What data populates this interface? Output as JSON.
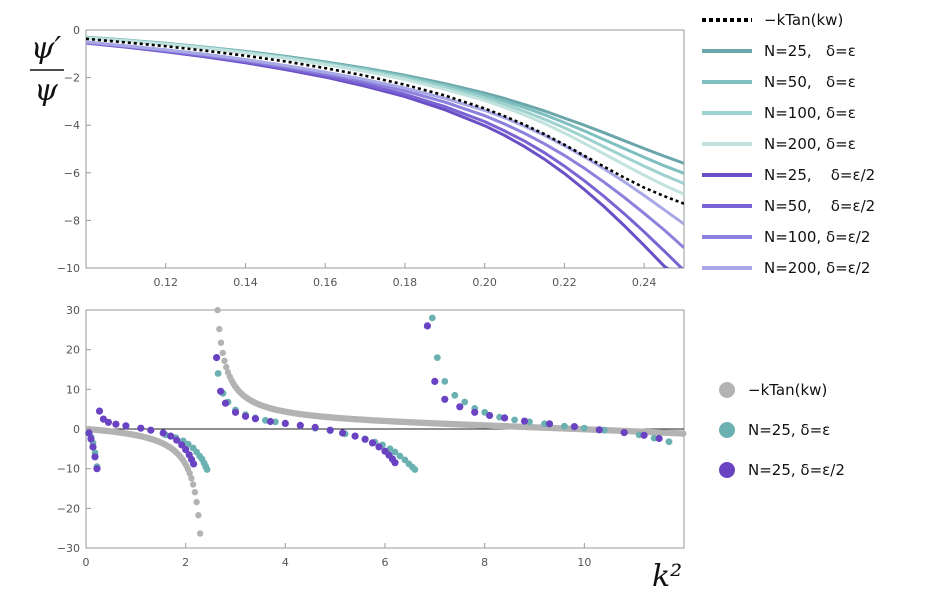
{
  "chart_data": [
    {
      "type": "line",
      "xlim": [
        0.1,
        0.25
      ],
      "ylim": [
        -10,
        0
      ],
      "x_ticks": [
        0.12,
        0.14,
        0.16,
        0.18,
        0.2,
        0.22,
        0.24
      ],
      "y_ticks": [
        0,
        -2,
        -4,
        -6,
        -8,
        -10
      ],
      "x_tick_labels": [
        "0.12",
        "0.14",
        "0.16",
        "0.18",
        "0.20",
        "0.22",
        "0.24"
      ],
      "y_tick_labels": [
        "0",
        "−2",
        "−4",
        "−6",
        "−8",
        "−10"
      ],
      "ylabel_numerator": "ψ′",
      "ylabel_denominator": "ψ",
      "legend_position": "right",
      "grid": false,
      "x": [
        0.1,
        0.11,
        0.12,
        0.13,
        0.14,
        0.15,
        0.16,
        0.17,
        0.18,
        0.19,
        0.2,
        0.205,
        0.21,
        0.215,
        0.22,
        0.225,
        0.23,
        0.235,
        0.24,
        0.245,
        0.25
      ],
      "series": [
        {
          "name": "−kTan(kw)",
          "color": "#000000",
          "dashed": true,
          "values": [
            -0.37,
            -0.52,
            -0.68,
            -0.87,
            -1.08,
            -1.32,
            -1.6,
            -1.92,
            -2.3,
            -2.75,
            -3.3,
            -3.62,
            -3.98,
            -4.38,
            -4.82,
            -5.28,
            -5.75,
            -6.2,
            -6.62,
            -6.98,
            -7.3
          ]
        },
        {
          "name": "N=25,   δ=ε",
          "color": "#6aa6aa",
          "values": [
            -0.3,
            -0.42,
            -0.56,
            -0.72,
            -0.9,
            -1.1,
            -1.34,
            -1.6,
            -1.9,
            -2.25,
            -2.65,
            -2.88,
            -3.13,
            -3.4,
            -3.7,
            -4.0,
            -4.32,
            -4.65,
            -4.98,
            -5.3,
            -5.6
          ]
        },
        {
          "name": "N=50,   δ=ε",
          "color": "#7fbfbf",
          "values": [
            -0.31,
            -0.43,
            -0.57,
            -0.73,
            -0.92,
            -1.13,
            -1.37,
            -1.64,
            -1.95,
            -2.32,
            -2.74,
            -2.99,
            -3.26,
            -3.56,
            -3.89,
            -4.24,
            -4.61,
            -4.98,
            -5.35,
            -5.7,
            -6.02
          ]
        },
        {
          "name": "N=100, δ=ε",
          "color": "#9ed2ce",
          "values": [
            -0.32,
            -0.44,
            -0.58,
            -0.75,
            -0.94,
            -1.16,
            -1.41,
            -1.69,
            -2.01,
            -2.4,
            -2.85,
            -3.12,
            -3.42,
            -3.75,
            -4.11,
            -4.5,
            -4.91,
            -5.32,
            -5.72,
            -6.1,
            -6.45
          ]
        },
        {
          "name": "N=200, δ=ε",
          "color": "#c2e3dd",
          "values": [
            -0.33,
            -0.45,
            -0.6,
            -0.77,
            -0.96,
            -1.19,
            -1.45,
            -1.74,
            -2.08,
            -2.49,
            -2.96,
            -3.25,
            -3.57,
            -3.93,
            -4.33,
            -4.76,
            -5.21,
            -5.66,
            -6.1,
            -6.52,
            -6.9
          ]
        },
        {
          "name": "N=25,    δ=ε/2",
          "color": "#6a4fc6",
          "values": [
            -0.55,
            -0.72,
            -0.91,
            -1.13,
            -1.38,
            -1.66,
            -1.98,
            -2.36,
            -2.8,
            -3.35,
            -4.02,
            -4.43,
            -4.9,
            -5.43,
            -6.03,
            -6.7,
            -7.43,
            -8.22,
            -9.05,
            -9.92,
            -10.5
          ]
        },
        {
          "name": "N=50,    δ=ε/2",
          "color": "#7a63d2",
          "values": [
            -0.54,
            -0.7,
            -0.89,
            -1.1,
            -1.34,
            -1.61,
            -1.92,
            -2.28,
            -2.7,
            -3.22,
            -3.85,
            -4.24,
            -4.67,
            -5.16,
            -5.72,
            -6.33,
            -7.0,
            -7.72,
            -8.48,
            -9.28,
            -10.1
          ]
        },
        {
          "name": "N=100, δ=ε/2",
          "color": "#8c81dc",
          "values": [
            -0.52,
            -0.68,
            -0.86,
            -1.06,
            -1.29,
            -1.55,
            -1.84,
            -2.17,
            -2.56,
            -3.03,
            -3.6,
            -3.95,
            -4.34,
            -4.78,
            -5.27,
            -5.81,
            -6.4,
            -7.03,
            -7.7,
            -8.4,
            -9.15
          ]
        },
        {
          "name": "N=200, δ=ε/2",
          "color": "#a9a8e6",
          "values": [
            -0.5,
            -0.66,
            -0.83,
            -1.02,
            -1.24,
            -1.49,
            -1.77,
            -2.08,
            -2.44,
            -2.87,
            -3.38,
            -3.69,
            -4.04,
            -4.43,
            -4.86,
            -5.33,
            -5.84,
            -6.38,
            -6.95,
            -7.55,
            -8.15
          ]
        }
      ]
    },
    {
      "type": "scatter",
      "xlim": [
        0,
        12
      ],
      "ylim": [
        -30,
        30
      ],
      "x_ticks": [
        0,
        2,
        4,
        6,
        8,
        10
      ],
      "y_ticks": [
        30,
        20,
        10,
        0,
        -10,
        -20,
        -30
      ],
      "x_tick_labels": [
        "0",
        "2",
        "4",
        "6",
        "8",
        "10"
      ],
      "y_tick_labels": [
        "30",
        "20",
        "10",
        "0",
        "−10",
        "−20",
        "−30"
      ],
      "xlabel": "k²",
      "legend_position": "right",
      "grid": false,
      "series": [
        {
          "name": "−kTan(kw)",
          "color": "#b3b3b3",
          "x_range": [
            0,
            12
          ]
        },
        {
          "name": "N=25, δ=ε",
          "color": "#6cb1b1",
          "x": [
            0.05,
            0.1,
            0.14,
            0.18,
            0.22,
            1.6,
            1.8,
            1.95,
            2.05,
            2.15,
            2.22,
            2.28,
            2.33,
            2.37,
            2.4,
            2.43,
            2.65,
            2.75,
            2.85,
            3.0,
            3.2,
            3.4,
            3.6,
            3.8,
            4.0,
            4.3,
            4.6,
            4.9,
            5.2,
            5.4,
            5.6,
            5.8,
            5.95,
            6.1,
            6.2,
            6.3,
            6.4,
            6.48,
            6.55,
            6.6,
            6.95,
            7.05,
            7.2,
            7.4,
            7.6,
            7.8,
            8.0,
            8.3,
            8.6,
            8.9,
            9.2,
            9.6,
            10.0,
            10.4,
            10.8,
            11.1,
            11.4,
            11.7
          ],
          "y": [
            -1.0,
            -2.0,
            -3.5,
            -6.0,
            -9.5,
            -1.5,
            -2.2,
            -3.0,
            -3.8,
            -4.8,
            -5.8,
            -6.8,
            -7.6,
            -8.6,
            -9.4,
            -10.2,
            14.0,
            9.0,
            6.8,
            4.8,
            3.6,
            2.8,
            2.2,
            1.8,
            1.4,
            0.8,
            0.2,
            -0.4,
            -1.2,
            -1.8,
            -2.5,
            -3.3,
            -4.0,
            -5.0,
            -5.8,
            -6.8,
            -7.8,
            -8.8,
            -9.6,
            -10.2,
            28.0,
            18.0,
            12.0,
            8.5,
            6.8,
            5.2,
            4.2,
            3.0,
            2.3,
            1.8,
            1.3,
            0.7,
            0.2,
            -0.3,
            -0.9,
            -1.5,
            -2.3,
            -3.2
          ]
        },
        {
          "name": "N=25, δ=ε/2",
          "color": "#6a43c3",
          "x": [
            0.06,
            0.1,
            0.14,
            0.18,
            0.22,
            0.27,
            0.35,
            0.45,
            0.6,
            0.8,
            1.1,
            1.3,
            1.55,
            1.7,
            1.82,
            1.92,
            2.0,
            2.07,
            2.12,
            2.16,
            2.62,
            2.7,
            2.8,
            3.0,
            3.2,
            3.4,
            3.7,
            4.0,
            4.3,
            4.6,
            4.9,
            5.15,
            5.4,
            5.6,
            5.75,
            5.88,
            6.0,
            6.08,
            6.15,
            6.2,
            6.85,
            7.0,
            7.2,
            7.5,
            7.8,
            8.1,
            8.4,
            8.8,
            9.3,
            9.8,
            10.3,
            10.8,
            11.2,
            11.5
          ],
          "y": [
            -1.0,
            -2.5,
            -4.5,
            -7.0,
            -10.0,
            4.5,
            2.5,
            1.7,
            1.2,
            0.8,
            0.2,
            -0.3,
            -1.0,
            -1.8,
            -2.8,
            -4.0,
            -5.2,
            -6.5,
            -7.7,
            -8.8,
            18.0,
            9.5,
            6.5,
            4.2,
            3.2,
            2.6,
            1.9,
            1.4,
            0.9,
            0.4,
            -0.3,
            -1.0,
            -1.8,
            -2.6,
            -3.5,
            -4.5,
            -5.6,
            -6.6,
            -7.6,
            -8.5,
            26.0,
            12.0,
            7.5,
            5.6,
            4.2,
            3.4,
            2.8,
            2.0,
            1.3,
            0.6,
            -0.2,
            -0.9,
            -1.6,
            -2.4
          ]
        }
      ]
    }
  ]
}
